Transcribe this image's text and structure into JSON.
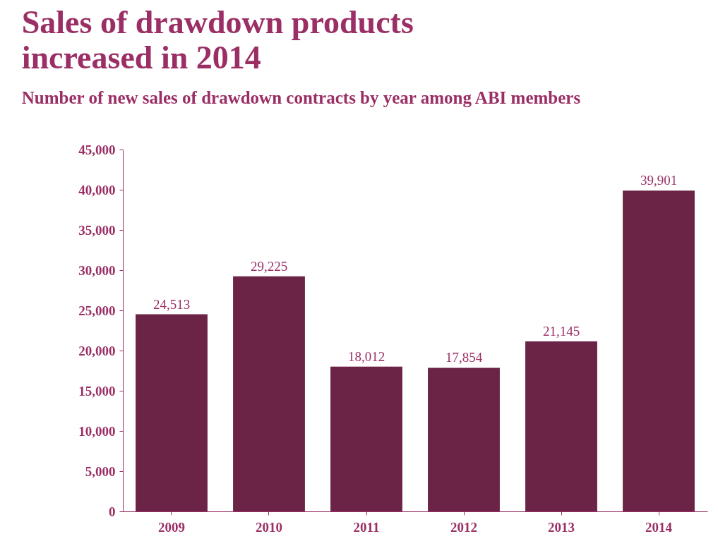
{
  "chart_data": {
    "type": "bar",
    "title": "Sales of drawdown products\nincreased in 2014",
    "subtitle": "Number of new sales of drawdown contracts by year among ABI members",
    "categories": [
      "2009",
      "2010",
      "2011",
      "2012",
      "2013",
      "2014"
    ],
    "values": [
      24513,
      29225,
      18012,
      17854,
      21145,
      39901
    ],
    "color": "#6b2346",
    "ylim": [
      0,
      45000
    ],
    "yticks": [
      {
        "value": 0,
        "label": "0"
      },
      {
        "value": 5000,
        "label": "5,000"
      },
      {
        "value": 10000,
        "label": "10,000"
      },
      {
        "value": 15000,
        "label": "15,000"
      },
      {
        "value": 20000,
        "label": "20,000"
      },
      {
        "value": 25000,
        "label": "25,000"
      },
      {
        "value": 30000,
        "label": "30,000"
      },
      {
        "value": 35000,
        "label": "35,000"
      },
      {
        "value": 40000,
        "label": "40,000"
      },
      {
        "value": 45000,
        "label": "45,000"
      }
    ],
    "value_labels": [
      "24,513",
      "29,225",
      "18,012",
      "17,854",
      "21,145",
      "39,901"
    ],
    "grid": false
  }
}
